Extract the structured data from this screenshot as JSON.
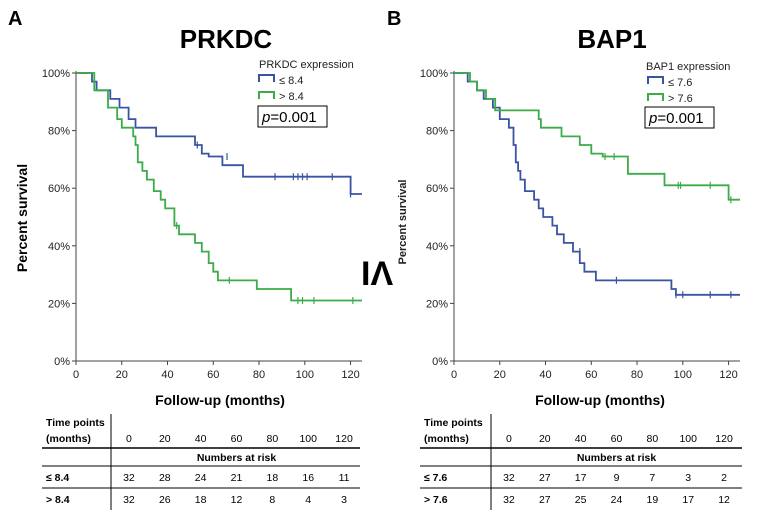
{
  "colors": {
    "low": "#3a54a4",
    "high": "#3aac48",
    "axis": "#444444",
    "grid": "#000000"
  },
  "chart_data": [
    {
      "type": "line",
      "panel": "A",
      "title": "PRKDC",
      "xlabel": "Follow-up (months)",
      "ylabel": "Percent survival",
      "xlim": [
        0,
        125
      ],
      "ylim": [
        0,
        100
      ],
      "xticks": [
        "0",
        "20",
        "40",
        "60",
        "80",
        "100",
        "120"
      ],
      "yticks": [
        "0%",
        "20%",
        "40%",
        "60%",
        "80%",
        "100%"
      ],
      "legend_title": "PRKDC expression",
      "legend_labels": [
        "≤ 8.4",
        "> 8.4"
      ],
      "p_label": "p",
      "p_value": "=0.001",
      "series": [
        {
          "name": "≤ 8.4",
          "color_key": "low",
          "steps": [
            [
              0,
              100
            ],
            [
              7,
              97
            ],
            [
              9,
              94
            ],
            [
              15,
              91
            ],
            [
              19,
              88
            ],
            [
              23,
              84
            ],
            [
              26,
              81
            ],
            [
              35,
              78
            ],
            [
              52,
              75
            ],
            [
              55,
              72
            ],
            [
              58,
              71
            ],
            [
              64,
              68
            ],
            [
              73,
              64
            ],
            [
              92,
              64
            ],
            [
              120,
              58
            ],
            [
              125,
              58
            ]
          ],
          "censors": [
            [
              53,
              75
            ],
            [
              66,
              71
            ],
            [
              87,
              64
            ],
            [
              95,
              64
            ],
            [
              97,
              64
            ],
            [
              99,
              64
            ],
            [
              101,
              64
            ],
            [
              112,
              64
            ],
            [
              120,
              58
            ]
          ]
        },
        {
          "name": "> 8.4",
          "color_key": "high",
          "steps": [
            [
              0,
              100
            ],
            [
              8,
              94
            ],
            [
              14,
              88
            ],
            [
              18,
              84
            ],
            [
              20,
              81
            ],
            [
              25,
              78
            ],
            [
              26,
              75
            ],
            [
              27,
              69
            ],
            [
              29,
              66
            ],
            [
              31,
              63
            ],
            [
              34,
              59
            ],
            [
              37,
              56
            ],
            [
              39,
              53
            ],
            [
              43,
              47
            ],
            [
              45,
              44
            ],
            [
              52,
              41
            ],
            [
              55,
              38
            ],
            [
              58,
              34
            ],
            [
              60,
              31
            ],
            [
              62,
              28
            ],
            [
              79,
              25
            ],
            [
              94,
              21
            ],
            [
              125,
              21
            ]
          ],
          "censors": [
            [
              44,
              47
            ],
            [
              67,
              28
            ],
            [
              97,
              21
            ],
            [
              99,
              21
            ],
            [
              104,
              21
            ],
            [
              121,
              21
            ]
          ]
        }
      ],
      "risk_table": {
        "header_label_1": "Time points",
        "header_label_2": "(months)",
        "times": [
          "0",
          "20",
          "40",
          "60",
          "80",
          "100",
          "120"
        ],
        "subheader": "Numbers at risk",
        "rows": [
          {
            "label": "≤ 8.4",
            "values": [
              "32",
              "28",
              "24",
              "21",
              "18",
              "16",
              "11"
            ]
          },
          {
            "label": "> 8.4",
            "values": [
              "32",
              "26",
              "18",
              "12",
              "8",
              "4",
              "3"
            ]
          }
        ]
      }
    },
    {
      "type": "line",
      "panel": "B",
      "title": "BAP1",
      "xlabel": "Follow-up (months)",
      "ylabel": "Percent survival",
      "xlim": [
        0,
        125
      ],
      "ylim": [
        0,
        100
      ],
      "xticks": [
        "0",
        "20",
        "40",
        "60",
        "80",
        "100",
        "120"
      ],
      "yticks": [
        "0%",
        "20%",
        "40%",
        "60%",
        "80%",
        "100%"
      ],
      "legend_title": "BAP1 expression",
      "legend_labels": [
        "≤ 7.6",
        "> 7.6"
      ],
      "p_label": "p",
      "p_value": "=0.001",
      "series": [
        {
          "name": "≤ 7.6",
          "color_key": "low",
          "steps": [
            [
              0,
              100
            ],
            [
              6,
              97
            ],
            [
              10,
              94
            ],
            [
              13,
              91
            ],
            [
              17,
              88
            ],
            [
              20,
              84
            ],
            [
              24,
              81
            ],
            [
              26,
              75
            ],
            [
              27,
              69
            ],
            [
              28,
              66
            ],
            [
              29,
              63
            ],
            [
              31,
              59
            ],
            [
              35,
              56
            ],
            [
              37,
              53
            ],
            [
              39,
              50
            ],
            [
              43,
              47
            ],
            [
              45,
              44
            ],
            [
              48,
              41
            ],
            [
              52,
              38
            ],
            [
              55,
              34
            ],
            [
              57,
              31
            ],
            [
              62,
              28
            ],
            [
              95,
              25
            ],
            [
              97,
              23
            ],
            [
              125,
              23
            ]
          ],
          "censors": [
            [
              55,
              38
            ],
            [
              71,
              28
            ],
            [
              97,
              23
            ],
            [
              100,
              23
            ],
            [
              112,
              23
            ],
            [
              121,
              23
            ]
          ]
        },
        {
          "name": "> 7.6",
          "color_key": "high",
          "steps": [
            [
              0,
              100
            ],
            [
              7,
              97
            ],
            [
              10,
              94
            ],
            [
              14,
              91
            ],
            [
              18,
              87
            ],
            [
              37,
              84
            ],
            [
              38,
              81
            ],
            [
              47,
              78
            ],
            [
              55,
              75
            ],
            [
              60,
              72
            ],
            [
              65,
              71
            ],
            [
              76,
              65
            ],
            [
              92,
              61
            ],
            [
              120,
              56
            ],
            [
              125,
              56
            ]
          ],
          "censors": [
            [
              66,
              71
            ],
            [
              70,
              71
            ],
            [
              98,
              61
            ],
            [
              99,
              61
            ],
            [
              112,
              61
            ],
            [
              121,
              56
            ]
          ]
        }
      ],
      "risk_table": {
        "header_label_1": "Time points",
        "header_label_2": "(months)",
        "times": [
          "0",
          "20",
          "40",
          "60",
          "80",
          "100",
          "120"
        ],
        "subheader": "Numbers at risk",
        "rows": [
          {
            "label": "≤ 7.6",
            "values": [
              "32",
              "27",
              "17",
              "9",
              "7",
              "3",
              "2"
            ]
          },
          {
            "label": "> 7.6",
            "values": [
              "32",
              "27",
              "25",
              "24",
              "19",
              "17",
              "12"
            ]
          }
        ]
      }
    }
  ],
  "artifacts": {
    "big_glyph": "IΛ",
    "clipped_ylabel": "Percent survival"
  }
}
